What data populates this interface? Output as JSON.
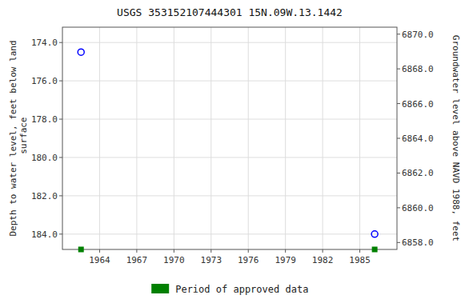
{
  "chart_data": {
    "type": "scatter",
    "title": "USGS 353152107444301 15N.09W.13.1442",
    "y_label": "Depth to water level, feet below land\n surface",
    "y2_label": "Groundwater level above NAVD 1988, feet",
    "xlim": [
      1961.0,
      1988.0
    ],
    "ylim": [
      184.8,
      173.2
    ],
    "y2lim": [
      6857.6,
      6870.4
    ],
    "xticks": [
      1964,
      1967,
      1970,
      1973,
      1976,
      1979,
      1982,
      1985
    ],
    "yticks": [
      {
        "value": 174.0,
        "label": "174.0"
      },
      {
        "value": 176.0,
        "label": "176.0"
      },
      {
        "value": 178.0,
        "label": "178.0"
      },
      {
        "value": 180.0,
        "label": "180.0"
      },
      {
        "value": 182.0,
        "label": "182.0"
      },
      {
        "value": 184.0,
        "label": "184.0"
      }
    ],
    "y2ticks": [
      {
        "value": 6858.0,
        "label": "6858.0"
      },
      {
        "value": 6860.0,
        "label": "6860.0"
      },
      {
        "value": 6862.0,
        "label": "6862.0"
      },
      {
        "value": 6864.0,
        "label": "6864.0"
      },
      {
        "value": 6866.0,
        "label": "6866.0"
      },
      {
        "value": 6868.0,
        "label": "6868.0"
      },
      {
        "value": 6870.0,
        "label": "6870.0"
      }
    ],
    "grid": true,
    "legend": "bottom",
    "series": [
      {
        "x": [
          1962.5,
          1986.2
        ],
        "values": [
          174.5,
          184.0
        ],
        "color": "blue",
        "marker": "circle"
      },
      {
        "name": "Period of approved data",
        "x": [
          1962.5,
          1986.2
        ],
        "values": [
          184.8,
          184.8
        ],
        "color": "#008000",
        "marker": "square"
      }
    ]
  }
}
